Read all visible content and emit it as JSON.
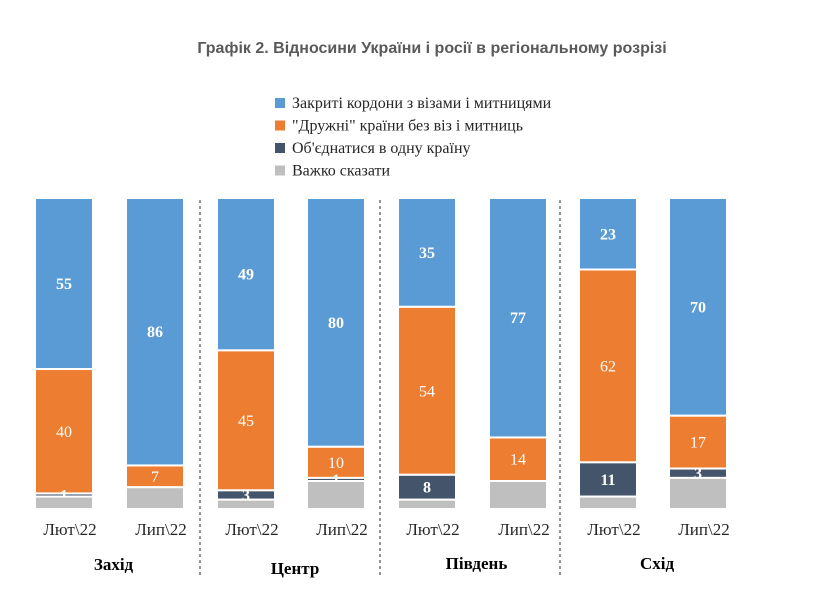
{
  "chart_data": {
    "type": "bar",
    "stacked": true,
    "normalized_percent": true,
    "title": "Графік 2. Відносини України і росії в регіональному розрізі",
    "legend_position": "top",
    "grid": false,
    "groups": [
      "Захід",
      "Центр",
      "Південь",
      "Схід"
    ],
    "categories": [
      "Лют\\22",
      "Лип\\22"
    ],
    "series": [
      {
        "name": "Закриті кордони з візами і митницями",
        "color": "#5B9BD5",
        "values": [
          [
            55,
            86
          ],
          [
            49,
            80
          ],
          [
            35,
            77
          ],
          [
            23,
            70
          ]
        ]
      },
      {
        "name": "\"Дружні\" країни без віз і митниць",
        "color": "#ED7D31",
        "values": [
          [
            40,
            7
          ],
          [
            45,
            10
          ],
          [
            54,
            14
          ],
          [
            62,
            17
          ]
        ]
      },
      {
        "name": "Об'єднатися в одну країну",
        "color": "#44546A",
        "values": [
          [
            1,
            0
          ],
          [
            3,
            1
          ],
          [
            8,
            0
          ],
          [
            11,
            3
          ]
        ]
      },
      {
        "name": "Важко сказати",
        "color": "#BFBFBF",
        "values": [
          [
            4,
            7
          ],
          [
            3,
            9
          ],
          [
            3,
            9
          ],
          [
            4,
            10
          ]
        ]
      }
    ],
    "labels": [
      [
        [
          "55",
          "40",
          "1",
          ""
        ],
        [
          "86",
          "7",
          "",
          ""
        ]
      ],
      [
        [
          "49",
          "45",
          "3",
          ""
        ],
        [
          "80",
          "10",
          "1",
          ""
        ]
      ],
      [
        [
          "35",
          "54",
          "8",
          ""
        ],
        [
          "77",
          "14",
          "",
          ""
        ]
      ],
      [
        [
          "23",
          "62",
          "11",
          ""
        ],
        [
          "70",
          "17",
          "3",
          ""
        ]
      ]
    ]
  }
}
